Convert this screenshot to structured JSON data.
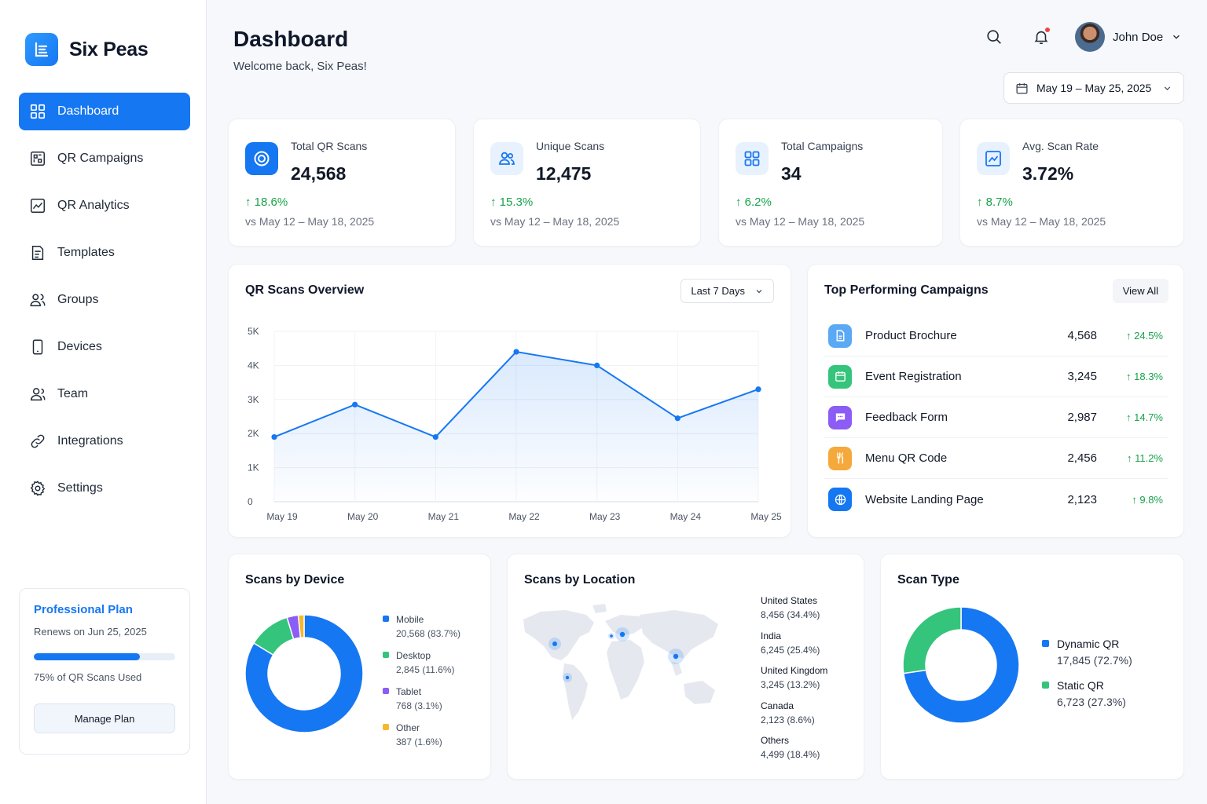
{
  "app": {
    "name": "Six Peas"
  },
  "sidebar": {
    "items": [
      {
        "label": "Dashboard",
        "icon": "grid-icon"
      },
      {
        "label": "QR Campaigns",
        "icon": "qr-campaign-icon"
      },
      {
        "label": "QR Analytics",
        "icon": "analytics-icon"
      },
      {
        "label": "Templates",
        "icon": "template-icon"
      },
      {
        "label": "Groups",
        "icon": "groups-icon"
      },
      {
        "label": "Devices",
        "icon": "device-icon"
      },
      {
        "label": "Team",
        "icon": "team-icon"
      },
      {
        "label": "Integrations",
        "icon": "link-icon"
      },
      {
        "label": "Settings",
        "icon": "gear-icon"
      }
    ],
    "plan": {
      "title": "Professional Plan",
      "renews": "Renews on Jun 25, 2025",
      "usage_fraction": 0.75,
      "usage_text": "75% of QR Scans Used",
      "button": "Manage Plan"
    }
  },
  "header": {
    "title": "Dashboard",
    "subtitle": "Welcome back, Six Peas!",
    "user_name": "John Doe",
    "date_range": "May 19 – May 25, 2025"
  },
  "stats": [
    {
      "label": "Total QR Scans",
      "value": "24,568",
      "change": "↑ 18.6%",
      "compare": "vs May 12 – May 18, 2025",
      "icon": "target-icon"
    },
    {
      "label": "Unique Scans",
      "value": "12,475",
      "change": "↑ 15.3%",
      "compare": "vs May 12 – May 18, 2025",
      "icon": "users-icon"
    },
    {
      "label": "Total Campaigns",
      "value": "34",
      "change": "↑ 6.2%",
      "compare": "vs May 12 – May 18, 2025",
      "icon": "grid-icon"
    },
    {
      "label": "Avg. Scan Rate",
      "value": "3.72%",
      "change": "↑ 8.7%",
      "compare": "vs May 12 – May 18, 2025",
      "icon": "chart-icon"
    }
  ],
  "overview": {
    "title": "QR Scans Overview",
    "range_select": "Last 7 Days"
  },
  "campaigns": {
    "title": "Top Performing Campaigns",
    "view_all": "View All",
    "rows": [
      {
        "name": "Product Brochure",
        "value": "4,568",
        "change": "↑ 24.5%",
        "icon": "document-icon",
        "color": "#5aa9f5"
      },
      {
        "name": "Event Registration",
        "value": "3,245",
        "change": "↑ 18.3%",
        "icon": "calendar-icon",
        "color": "#34c47c"
      },
      {
        "name": "Feedback Form",
        "value": "2,987",
        "change": "↑ 14.7%",
        "icon": "chat-icon",
        "color": "#8b5cf6"
      },
      {
        "name": "Menu QR Code",
        "value": "2,456",
        "change": "↑ 11.2%",
        "icon": "utensils-icon",
        "color": "#f6a93b"
      },
      {
        "name": "Website Landing Page",
        "value": "2,123",
        "change": "↑ 9.8%",
        "icon": "globe-icon",
        "color": "#1677f2"
      }
    ]
  },
  "device": {
    "title": "Scans by Device",
    "items": [
      {
        "label": "Mobile",
        "value": "20,568 (83.7%)",
        "color": "#1677f2"
      },
      {
        "label": "Desktop",
        "value": "2,845 (11.6%)",
        "color": "#34c47c"
      },
      {
        "label": "Tablet",
        "value": "768 (3.1%)",
        "color": "#8b5cf6"
      },
      {
        "label": "Other",
        "value": "387 (1.6%)",
        "color": "#f5b82e"
      }
    ]
  },
  "location": {
    "title": "Scans by Location",
    "items": [
      {
        "label": "United States",
        "value": "8,456 (34.4%)"
      },
      {
        "label": "India",
        "value": "6,245 (25.4%)"
      },
      {
        "label": "United Kingdom",
        "value": "3,245 (13.2%)"
      },
      {
        "label": "Canada",
        "value": "2,123 (8.6%)"
      },
      {
        "label": "Others",
        "value": "4,499 (18.4%)"
      }
    ]
  },
  "scan_type": {
    "title": "Scan Type",
    "items": [
      {
        "label": "Dynamic QR",
        "value": "17,845 (72.7%)",
        "color": "#1677f2"
      },
      {
        "label": "Static QR",
        "value": "6,723 (27.3%)",
        "color": "#34c47c"
      }
    ]
  },
  "chart_data": [
    {
      "type": "area",
      "title": "QR Scans Overview",
      "categories": [
        "May 19",
        "May 20",
        "May 21",
        "May 22",
        "May 23",
        "May 24",
        "May 25"
      ],
      "series": [
        {
          "values": [
            1900,
            2850,
            1900,
            4400,
            4000,
            2450,
            3300
          ]
        }
      ],
      "ylim": [
        0,
        5000
      ],
      "yticks": [
        "0",
        "1K",
        "2K",
        "3K",
        "4K",
        "5K"
      ],
      "grid": true,
      "color": "#1677f2"
    },
    {
      "type": "pie",
      "title": "Scans by Device",
      "categories": [
        "Mobile",
        "Desktop",
        "Tablet",
        "Other"
      ],
      "values": [
        83.7,
        11.6,
        3.1,
        1.6
      ],
      "colors": [
        "#1677f2",
        "#34c47c",
        "#8b5cf6",
        "#f5b82e"
      ]
    },
    {
      "type": "pie",
      "title": "Scan Type",
      "categories": [
        "Dynamic QR",
        "Static QR"
      ],
      "values": [
        72.7,
        27.3
      ],
      "colors": [
        "#1677f2",
        "#34c47c"
      ]
    }
  ]
}
